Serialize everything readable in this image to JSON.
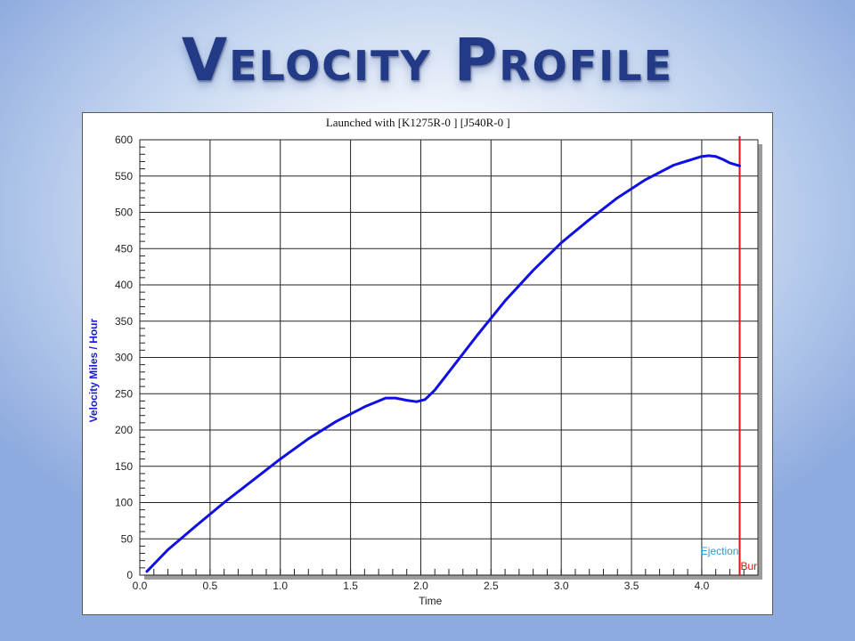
{
  "slide": {
    "title": "Velocity Profile"
  },
  "chart_data": {
    "type": "line",
    "title": "Launched with [K1275R-0   ] [J540R-0   ]",
    "xlabel": "Time",
    "ylabel": "Velocity Miles / Hour",
    "xlim": [
      0.0,
      4.4
    ],
    "ylim": [
      0,
      600
    ],
    "x_ticks": [
      "0.0",
      "0.5",
      "1.0",
      "1.5",
      "2.0",
      "2.5",
      "3.0",
      "3.5",
      "4.0"
    ],
    "y_ticks": [
      "0",
      "50",
      "100",
      "150",
      "200",
      "250",
      "300",
      "350",
      "400",
      "450",
      "500",
      "550",
      "600"
    ],
    "grid": true,
    "series": [
      {
        "color": "#1010e0",
        "x": [
          0.05,
          0.2,
          0.4,
          0.6,
          0.8,
          1.0,
          1.2,
          1.4,
          1.6,
          1.75,
          1.82,
          1.9,
          1.97,
          2.03,
          2.1,
          2.2,
          2.4,
          2.6,
          2.8,
          3.0,
          3.2,
          3.4,
          3.6,
          3.8,
          4.0,
          4.05,
          4.1,
          4.15,
          4.2,
          4.27
        ],
        "y": [
          5,
          35,
          68,
          100,
          130,
          160,
          188,
          212,
          232,
          244,
          244,
          241,
          239,
          242,
          255,
          280,
          330,
          378,
          420,
          458,
          490,
          520,
          545,
          565,
          577,
          578,
          577,
          573,
          568,
          564
        ]
      }
    ],
    "markers": [
      {
        "label": "Ejection",
        "x": 4.27,
        "color": "#2b9ad6"
      },
      {
        "label": "Burnout",
        "x": 4.27,
        "color": "#dd1111"
      }
    ]
  }
}
